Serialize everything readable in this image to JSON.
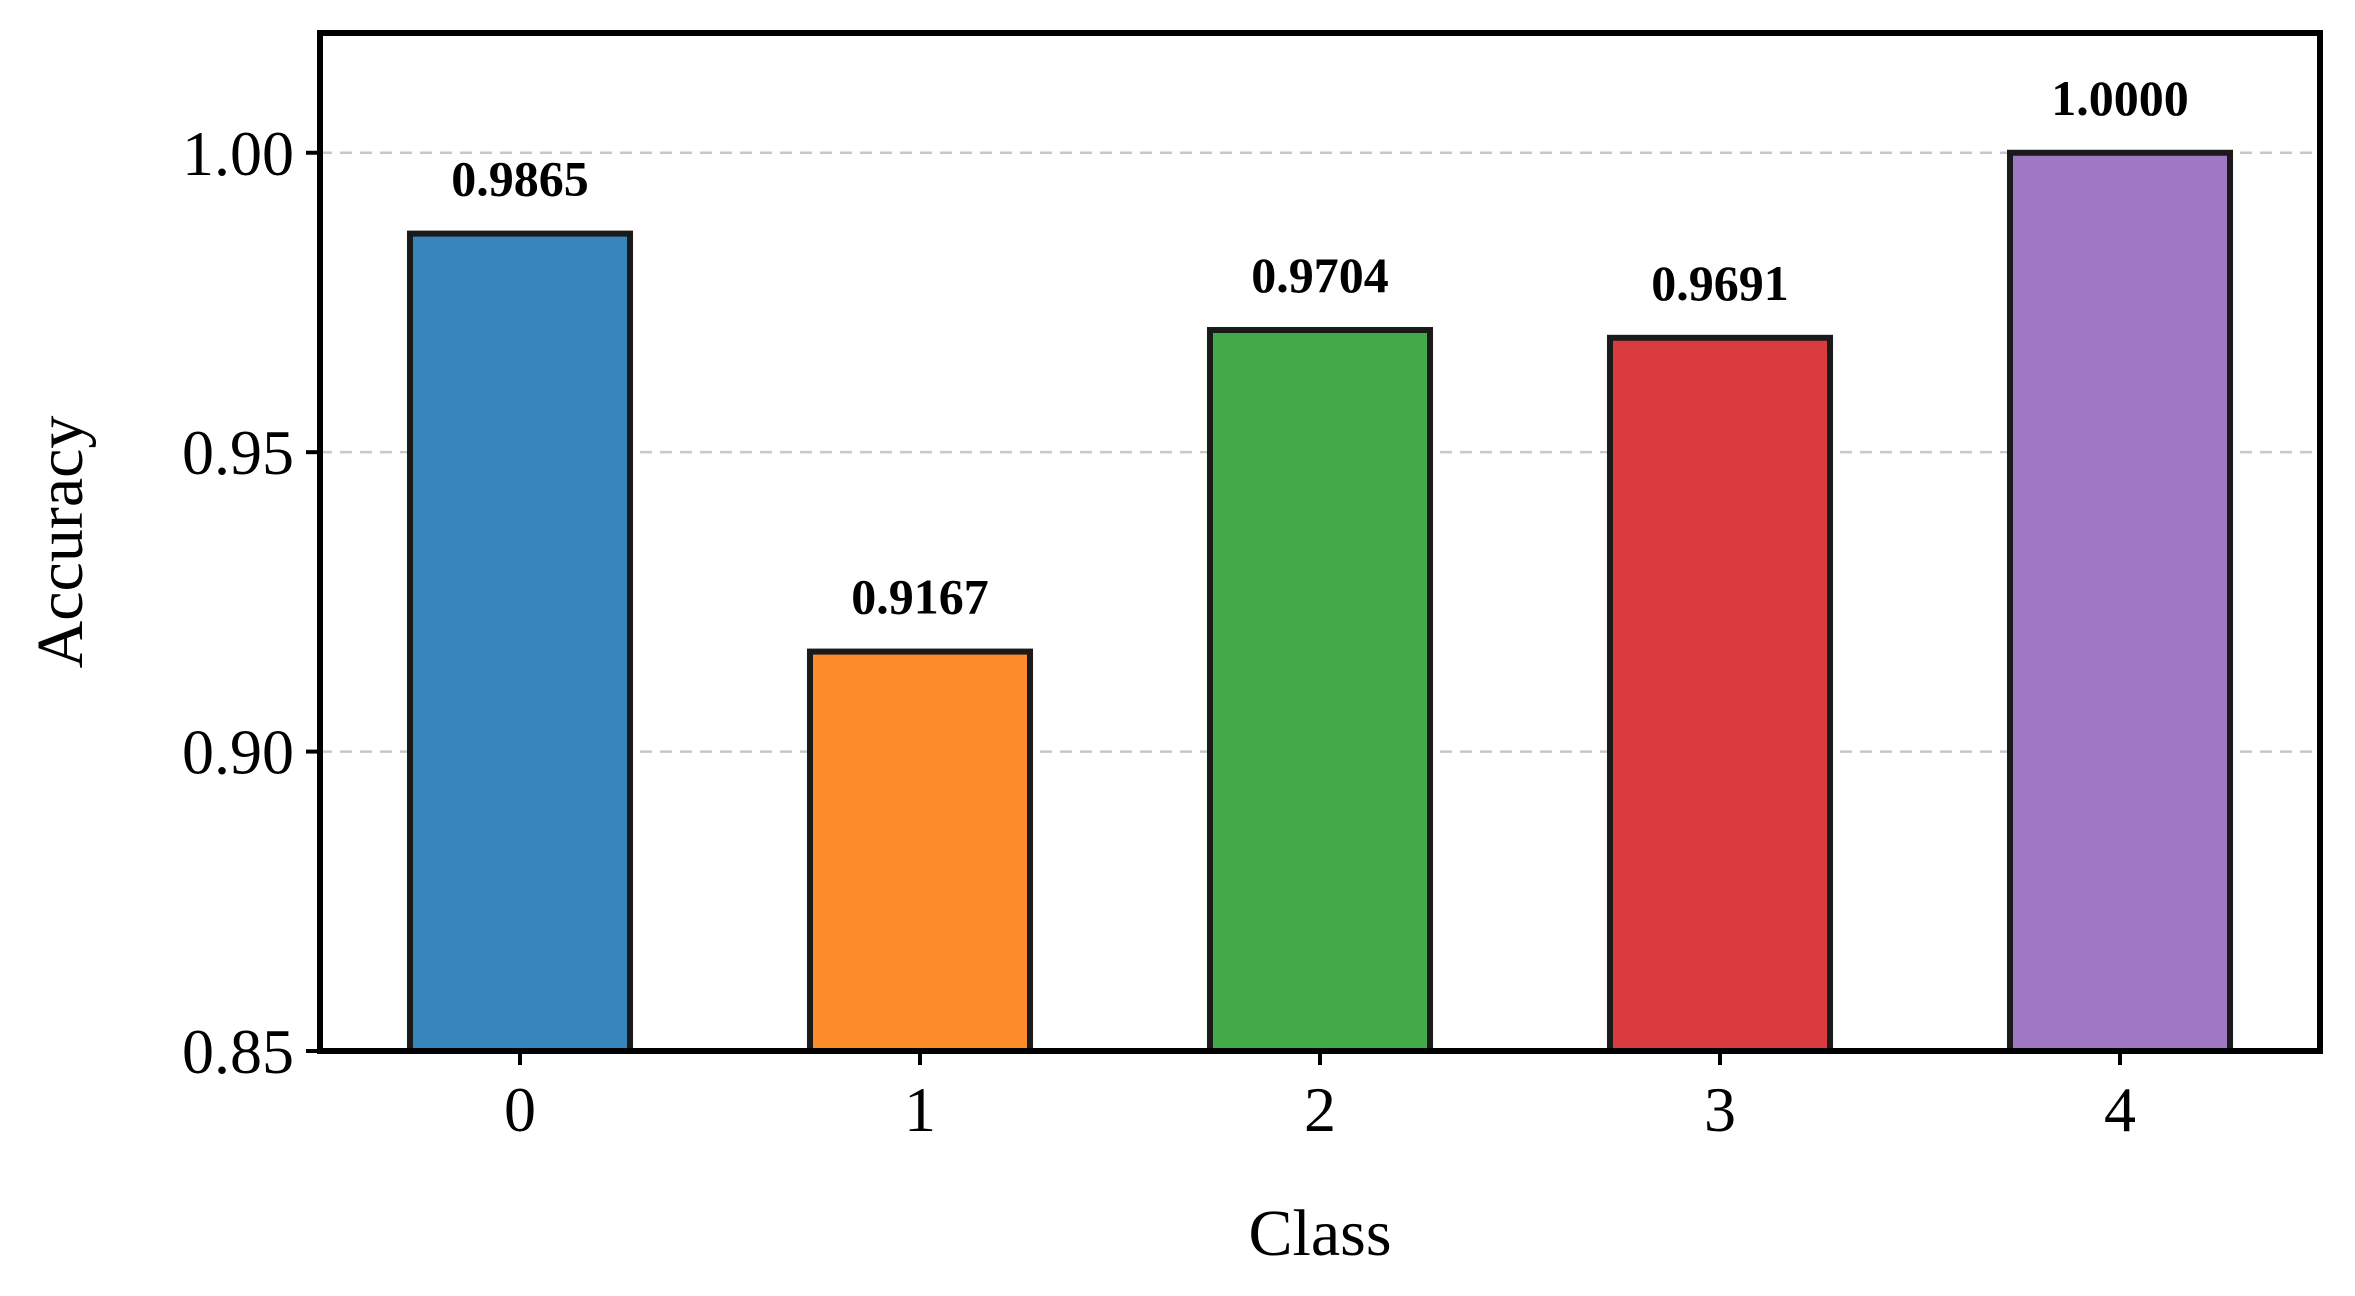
{
  "chart_data": {
    "type": "bar",
    "title": "",
    "xlabel": "Class",
    "ylabel": "Accuracy",
    "categories": [
      "0",
      "1",
      "2",
      "3",
      "4"
    ],
    "values": [
      0.9865,
      0.9167,
      0.9704,
      0.9691,
      1.0
    ],
    "data_labels": [
      "0.9865",
      "0.9167",
      "0.9704",
      "0.9691",
      "1.0000"
    ],
    "colors": [
      "#3785bd",
      "#fd8c2b",
      "#42aa47",
      "#d93b3f",
      "#9e78c2"
    ],
    "edge_color": "#1a1a1a",
    "ylim": [
      0.85,
      1.02
    ],
    "yticks": [
      0.85,
      0.9,
      0.95,
      1.0
    ],
    "ytick_labels": [
      "0.85",
      "0.90",
      "0.95",
      "1.00"
    ],
    "grid": "horizontal dashed",
    "grid_color": "#c8c8c8"
  }
}
